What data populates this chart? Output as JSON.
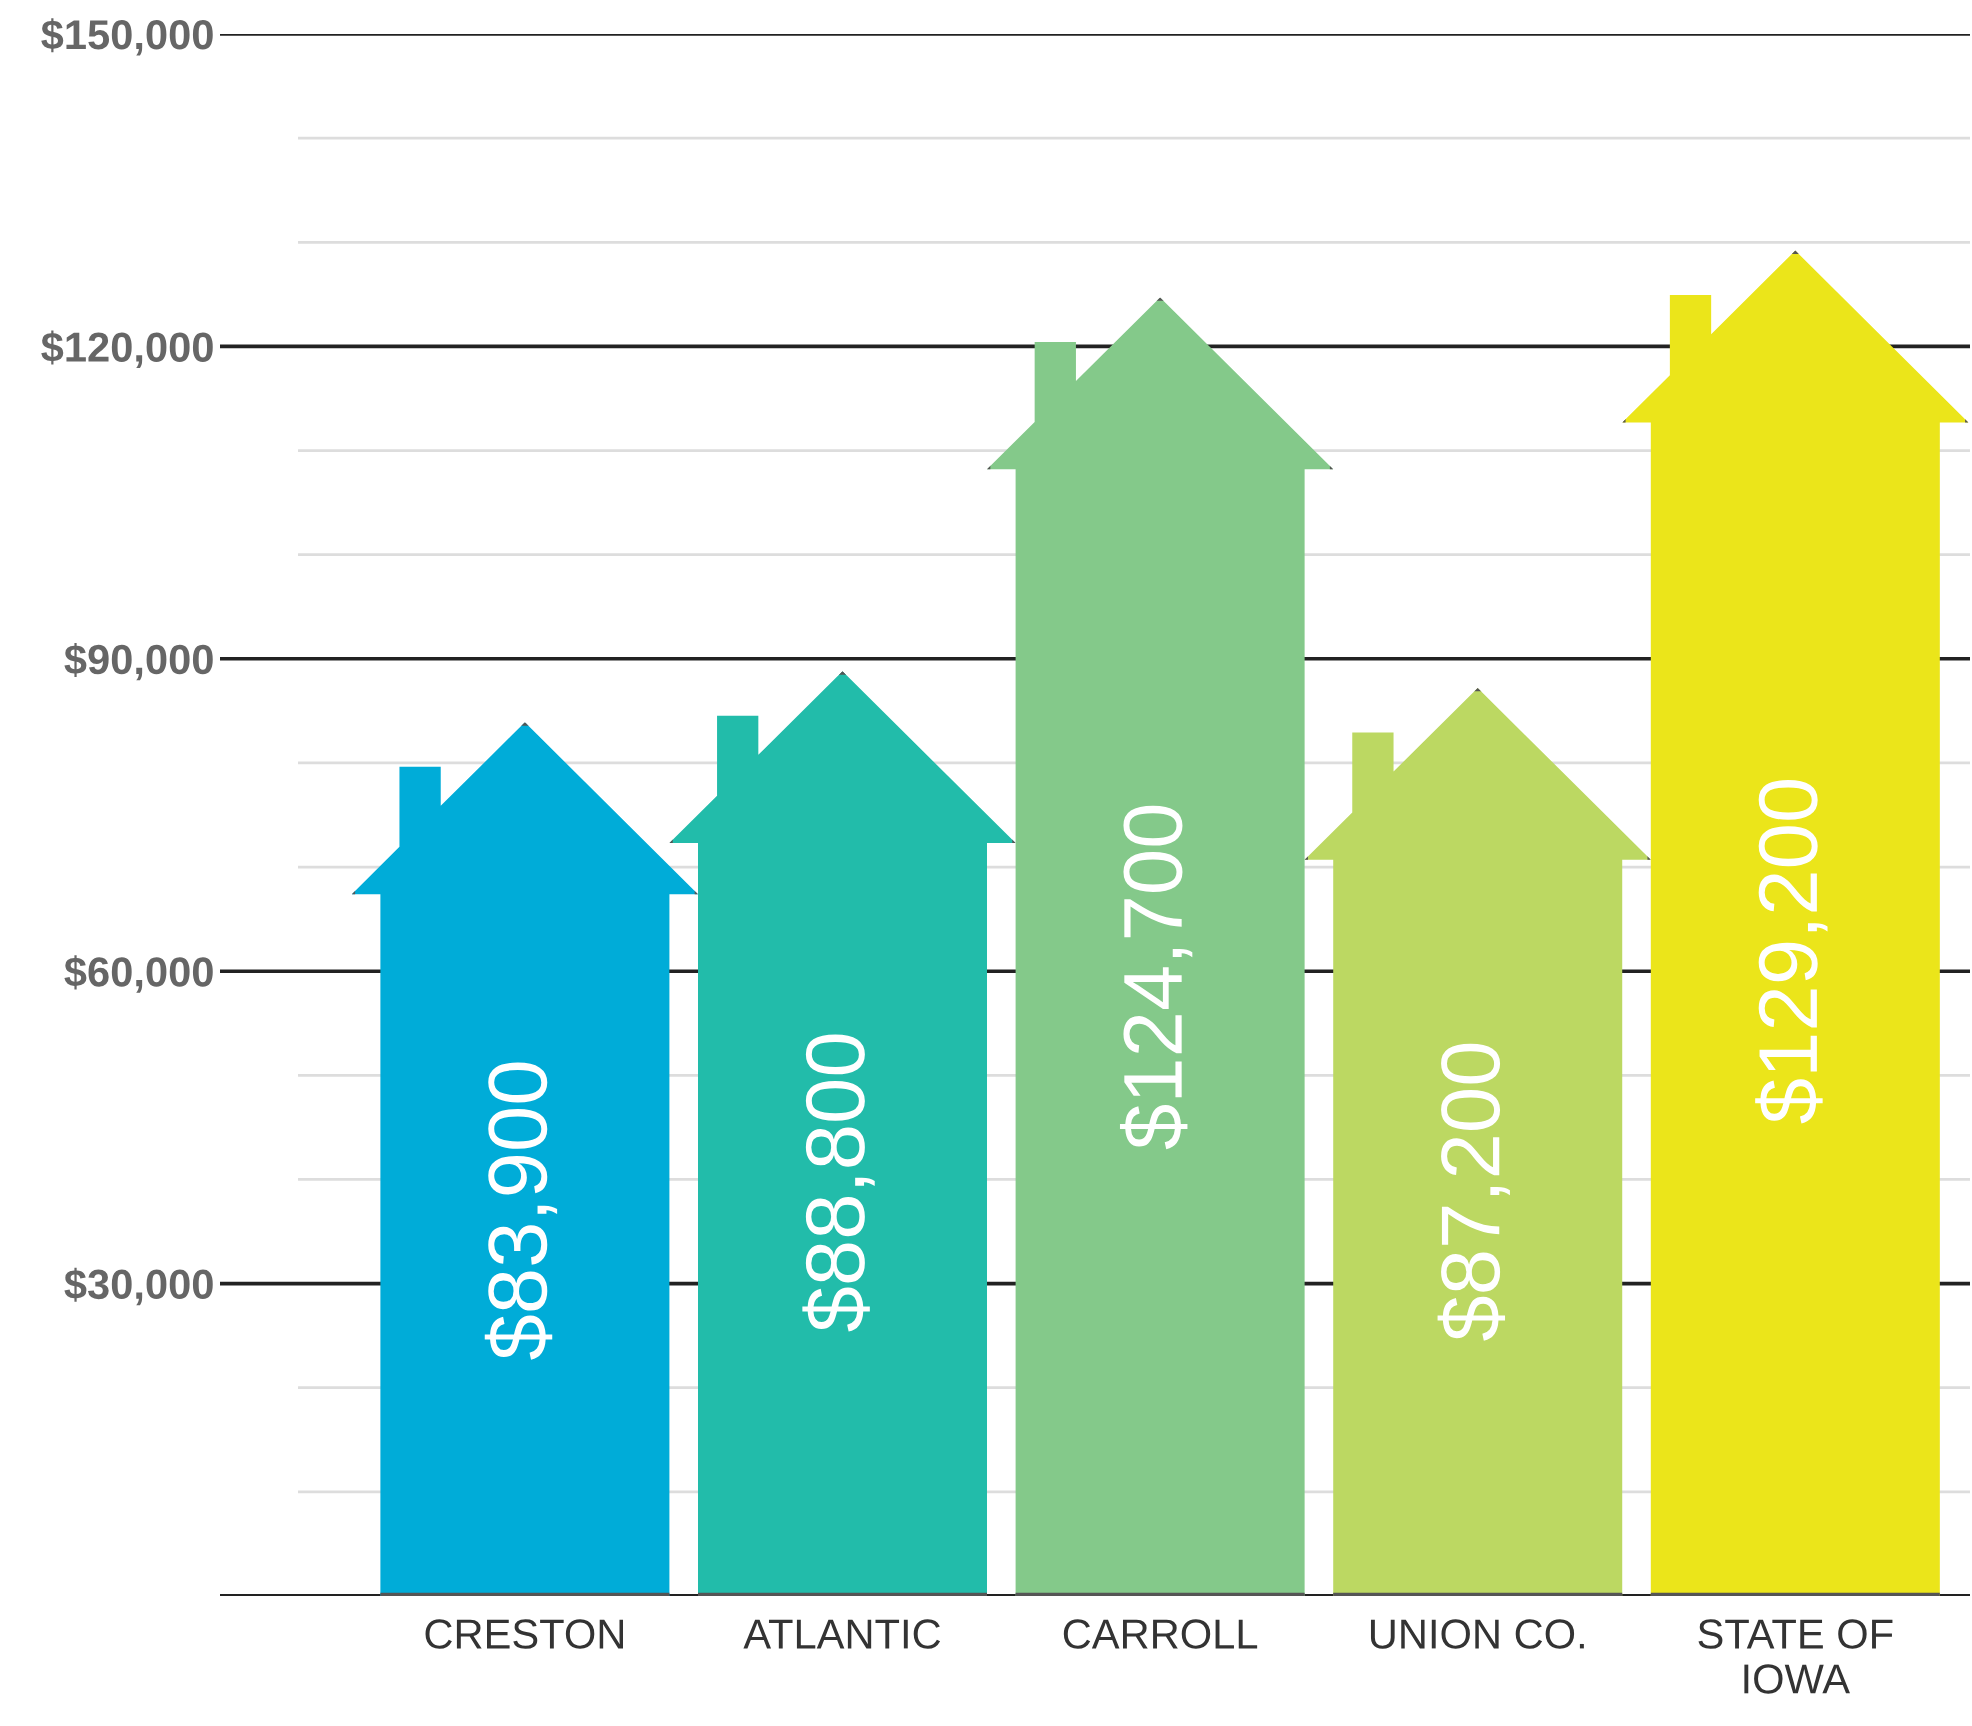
{
  "chart_data": {
    "type": "bar",
    "categories": [
      "CRESTON",
      "ATLANTIC",
      "CARROLL",
      "UNION CO.",
      "STATE OF\nIOWA"
    ],
    "values": [
      83900,
      88800,
      124700,
      87200,
      129200
    ],
    "value_labels": [
      "$83,900",
      "$88,800",
      "$124,700",
      "$87,200",
      "$129,200"
    ],
    "colors": [
      "#00acd8",
      "#22bcaa",
      "#84c98a",
      "#bcd862",
      "#ebe51a"
    ],
    "ylim": [
      0,
      150000
    ],
    "yticks": [
      {
        "value": 0,
        "label": null
      },
      {
        "value": 10000,
        "label": null
      },
      {
        "value": 20000,
        "label": null
      },
      {
        "value": 30000,
        "label": "$30,000"
      },
      {
        "value": 40000,
        "label": null
      },
      {
        "value": 50000,
        "label": null
      },
      {
        "value": 60000,
        "label": "$60,000"
      },
      {
        "value": 70000,
        "label": null
      },
      {
        "value": 80000,
        "label": null
      },
      {
        "value": 90000,
        "label": "$90,000"
      },
      {
        "value": 100000,
        "label": null
      },
      {
        "value": 110000,
        "label": null
      },
      {
        "value": 120000,
        "label": "$120,000"
      },
      {
        "value": 130000,
        "label": null
      },
      {
        "value": 140000,
        "label": null
      },
      {
        "value": 150000,
        "label": "$150,000"
      }
    ],
    "grid": "y"
  }
}
